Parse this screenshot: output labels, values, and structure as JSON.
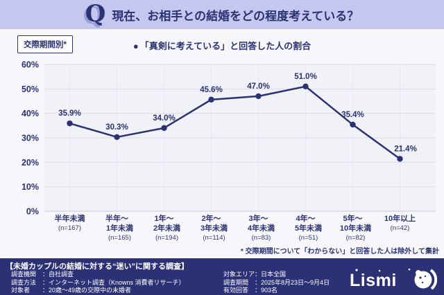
{
  "colors": {
    "accent_navy": "#2b3274",
    "header_bg": "#c6c7ee",
    "footer_bg": "#2b3174",
    "page_bg": "#f7f7fb",
    "gridline": "#d9dbe9"
  },
  "header": {
    "q_mark": "Q",
    "title": "現在、お相手との結婚をどの程度考えている？"
  },
  "filter_badge": {
    "label": "交際期間別*"
  },
  "legend": {
    "marker": "●",
    "label": "「真剣に考えている」と回答した人の割合"
  },
  "chart_data": {
    "type": "line",
    "title": "「真剣に考えている」と回答した人の割合（交際期間別）",
    "categories": [
      "半年未満",
      "半年〜1年未満",
      "1年〜2年未満",
      "2年〜3年未満",
      "3年〜4年未満",
      "4年〜5年未満",
      "5年〜10年未満",
      "10年以上"
    ],
    "category_lines": [
      [
        "半年未満"
      ],
      [
        "半年〜",
        "1年未満"
      ],
      [
        "1年〜",
        "2年未満"
      ],
      [
        "2年〜",
        "3年未満"
      ],
      [
        "3年〜",
        "4年未満"
      ],
      [
        "4年〜",
        "5年未満"
      ],
      [
        "5年〜",
        "10年未満"
      ],
      [
        "10年以上"
      ]
    ],
    "sample_sizes": [
      "(n=167)",
      "(n=165)",
      "(n=194)",
      "(n=114)",
      "(n=83)",
      "(n=51)",
      "(n=82)",
      "(n=42)"
    ],
    "values": [
      35.9,
      30.3,
      34.0,
      45.6,
      47.0,
      51.0,
      35.4,
      21.4
    ],
    "value_labels": [
      "35.9%",
      "30.3%",
      "34.0%",
      "45.6%",
      "47.0%",
      "51.0%",
      "35.4%",
      "21.4%"
    ],
    "xlabel": "",
    "ylabel": "",
    "ylim": [
      0,
      60
    ],
    "ytick_step": 10,
    "ytick_labels": [
      "0%",
      "10%",
      "20%",
      "30%",
      "40%",
      "50%",
      "60%"
    ],
    "grid": true,
    "legend_position": "top-center",
    "line_color": "#2b3274"
  },
  "footnote": "* 交際期間について「わからない」と回答した人は除外して集計",
  "footer": {
    "title": "【未婚カップルの結婚に対する“迷い”に関する調査】",
    "left_rows": [
      {
        "label": "調査機関　：",
        "value": "自社調査"
      },
      {
        "label": "調査方法　：",
        "value": "インターネット調査（Knowns 消費者リサーチ）"
      },
      {
        "label": "対象者　　：",
        "value": "20歳〜49歳の交際中の未婚者"
      }
    ],
    "right_rows": [
      {
        "label": "対象エリア：",
        "value": "日本全国"
      },
      {
        "label": "調査期間　：",
        "value": "2025年8月23日〜9月4日"
      },
      {
        "label": "有効回答　：",
        "value": "903名"
      }
    ],
    "logo_text": "Lismi"
  }
}
